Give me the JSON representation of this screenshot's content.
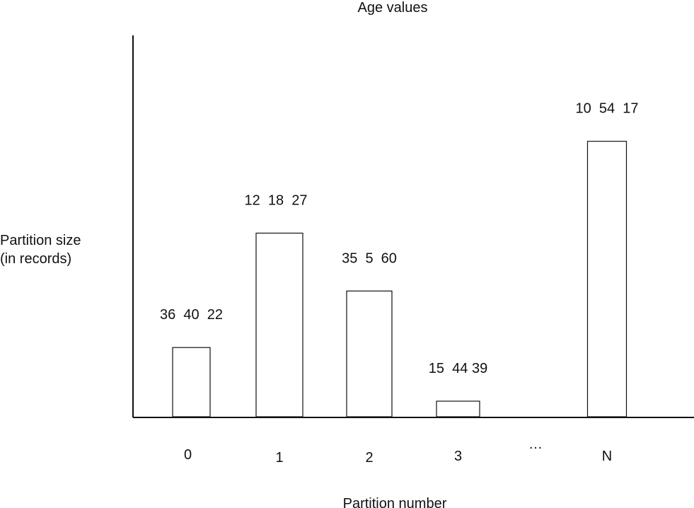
{
  "chart_data": {
    "type": "bar",
    "title": "Age values",
    "ylabel_lines": [
      "Partition size",
      "(in records)"
    ],
    "xlabel": "Partition number",
    "ellipsis": "…",
    "categories": [
      "0",
      "1",
      "2",
      "3",
      "N"
    ],
    "values": [
      98,
      260,
      178,
      22,
      390
    ],
    "ylim": [
      0,
      540
    ],
    "age_values": [
      "36  40  22",
      "12  18  27",
      "35  5  60",
      "15  44 39",
      "10  54  17"
    ],
    "grid": false,
    "legend": "none"
  }
}
